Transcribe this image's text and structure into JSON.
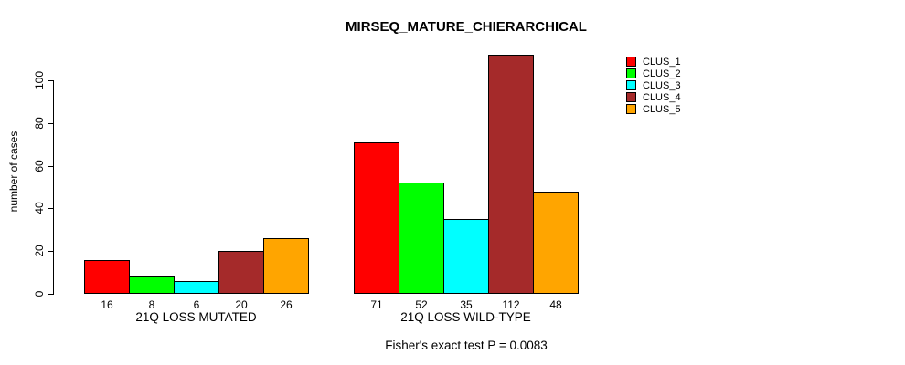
{
  "chart_data": {
    "type": "bar",
    "title": "MIRSEQ_MATURE_CHIERARCHICAL",
    "ylabel": "number of cases",
    "xlabel": "",
    "ylim": [
      0,
      100
    ],
    "yticks": [
      0,
      20,
      40,
      60,
      80,
      100
    ],
    "grid": false,
    "legend_position": "right",
    "bar_value_labels": true,
    "categories": [
      "21Q LOSS MUTATED",
      "21Q LOSS WILD-TYPE"
    ],
    "series": [
      {
        "name": "CLUS_1",
        "color": "#FF0000",
        "values": [
          16,
          71
        ]
      },
      {
        "name": "CLUS_2",
        "color": "#00FF00",
        "values": [
          8,
          52
        ]
      },
      {
        "name": "CLUS_3",
        "color": "#00FFFF",
        "values": [
          6,
          35
        ]
      },
      {
        "name": "CLUS_4",
        "color": "#A52A2A",
        "values": [
          20,
          112
        ]
      },
      {
        "name": "CLUS_5",
        "color": "#FFA500",
        "values": [
          26,
          48
        ]
      }
    ],
    "annotation": "Fisher's exact test P = 0.0083"
  }
}
